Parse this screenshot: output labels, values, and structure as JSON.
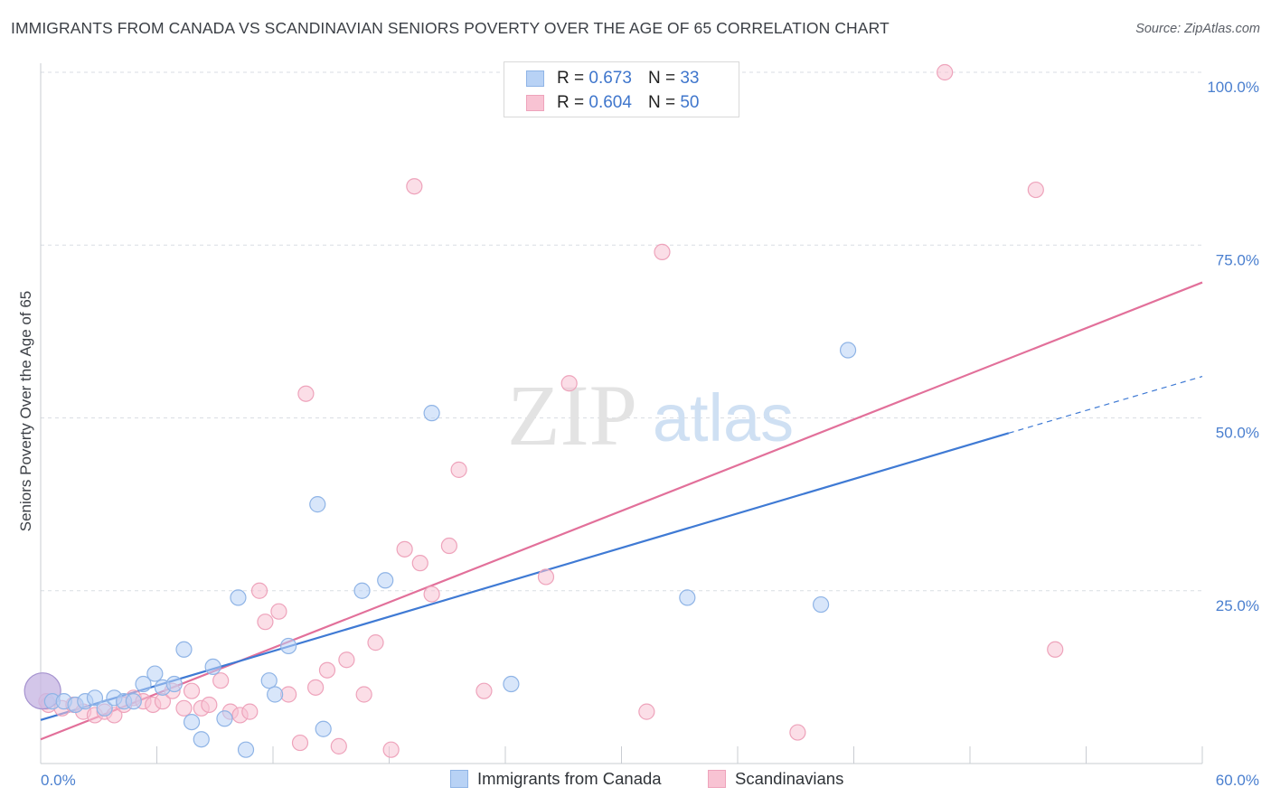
{
  "title": "IMMIGRANTS FROM CANADA VS SCANDINAVIAN SENIORS POVERTY OVER THE AGE OF 65 CORRELATION CHART",
  "source": "Source: ZipAtlas.com",
  "watermark": {
    "zip": "ZIP",
    "atlas": "atlas"
  },
  "legend": {
    "series1": {
      "r_label": "R =",
      "r_value": "0.673",
      "n_label": "N =",
      "n_value": "33"
    },
    "series2": {
      "r_label": "R =",
      "r_value": "0.604",
      "n_label": "N =",
      "n_value": "50"
    }
  },
  "bottom_legend": {
    "series1": "Immigrants from Canada",
    "series2": "Scandinavians"
  },
  "colors": {
    "blue_fill": "#b8d2f5",
    "blue_stroke": "#8fb4e6",
    "blue_line": "#3f7ad4",
    "pink_fill": "#f8c3d3",
    "pink_stroke": "#eea3bb",
    "pink_line": "#e2709a",
    "grid": "#d9dde3",
    "axis_label": "#4a7fcf"
  },
  "chart_data": {
    "type": "scatter",
    "title": "IMMIGRANTS FROM CANADA VS SCANDINAVIAN SENIORS POVERTY OVER THE AGE OF 65 CORRELATION CHART",
    "xlabel": "",
    "ylabel": "Seniors Poverty Over the Age of 65",
    "xlim": [
      0,
      60
    ],
    "ylim": [
      0,
      102
    ],
    "x_tick_labels": [
      "0.0%",
      "60.0%"
    ],
    "y_ticks": [
      25,
      50,
      75,
      100
    ],
    "y_tick_labels": [
      "25.0%",
      "50.0%",
      "75.0%",
      "100.0%"
    ],
    "grid": true,
    "legend_position": "top-center",
    "series": [
      {
        "name": "Immigrants from Canada",
        "color": "#b8d2f5",
        "r": 0.673,
        "n": 33,
        "trend": {
          "x": [
            0,
            50
          ],
          "y": [
            6.3,
            47.8
          ],
          "dashed_to": [
            60,
            56.0
          ]
        },
        "points": [
          {
            "x": 0.1,
            "y": 10.5,
            "big": true
          },
          {
            "x": 0.6,
            "y": 9.0
          },
          {
            "x": 1.2,
            "y": 9.0
          },
          {
            "x": 1.8,
            "y": 8.5
          },
          {
            "x": 2.3,
            "y": 9.0
          },
          {
            "x": 2.8,
            "y": 9.5
          },
          {
            "x": 3.3,
            "y": 8.0
          },
          {
            "x": 3.8,
            "y": 9.5
          },
          {
            "x": 4.3,
            "y": 9.0
          },
          {
            "x": 4.8,
            "y": 9.0
          },
          {
            "x": 5.3,
            "y": 11.5
          },
          {
            "x": 5.9,
            "y": 13.0
          },
          {
            "x": 6.3,
            "y": 11.0
          },
          {
            "x": 6.9,
            "y": 11.5
          },
          {
            "x": 7.4,
            "y": 16.5
          },
          {
            "x": 7.8,
            "y": 6.0
          },
          {
            "x": 8.3,
            "y": 3.5
          },
          {
            "x": 8.9,
            "y": 14.0
          },
          {
            "x": 9.5,
            "y": 6.5
          },
          {
            "x": 10.2,
            "y": 24.0
          },
          {
            "x": 10.6,
            "y": 2.0
          },
          {
            "x": 11.8,
            "y": 12.0
          },
          {
            "x": 12.1,
            "y": 10.0
          },
          {
            "x": 12.8,
            "y": 17.0
          },
          {
            "x": 14.3,
            "y": 37.5
          },
          {
            "x": 14.6,
            "y": 5.0
          },
          {
            "x": 16.6,
            "y": 25.0
          },
          {
            "x": 17.8,
            "y": 26.5
          },
          {
            "x": 20.2,
            "y": 50.7
          },
          {
            "x": 24.3,
            "y": 11.5
          },
          {
            "x": 33.4,
            "y": 24.0
          },
          {
            "x": 40.3,
            "y": 23.0
          },
          {
            "x": 41.7,
            "y": 59.8
          }
        ]
      },
      {
        "name": "Scandinavians",
        "color": "#f8c3d3",
        "r": 0.604,
        "n": 50,
        "trend": {
          "x": [
            0,
            60
          ],
          "y": [
            3.5,
            69.6
          ]
        },
        "points": [
          {
            "x": 0.4,
            "y": 8.5
          },
          {
            "x": 1.1,
            "y": 8.0
          },
          {
            "x": 1.7,
            "y": 8.5
          },
          {
            "x": 2.2,
            "y": 7.5
          },
          {
            "x": 2.8,
            "y": 7.0
          },
          {
            "x": 3.3,
            "y": 7.5
          },
          {
            "x": 3.8,
            "y": 7.0
          },
          {
            "x": 4.3,
            "y": 8.5
          },
          {
            "x": 4.8,
            "y": 9.5
          },
          {
            "x": 5.3,
            "y": 9.0
          },
          {
            "x": 5.8,
            "y": 8.5
          },
          {
            "x": 6.3,
            "y": 9.0
          },
          {
            "x": 6.8,
            "y": 10.5
          },
          {
            "x": 7.4,
            "y": 8.0
          },
          {
            "x": 7.8,
            "y": 10.5
          },
          {
            "x": 8.3,
            "y": 8.0
          },
          {
            "x": 8.7,
            "y": 8.5
          },
          {
            "x": 9.3,
            "y": 12.0
          },
          {
            "x": 9.8,
            "y": 7.5
          },
          {
            "x": 10.3,
            "y": 7.0
          },
          {
            "x": 10.8,
            "y": 7.5
          },
          {
            "x": 11.3,
            "y": 25.0
          },
          {
            "x": 11.6,
            "y": 20.5
          },
          {
            "x": 12.3,
            "y": 22.0
          },
          {
            "x": 12.8,
            "y": 10.0
          },
          {
            "x": 13.4,
            "y": 3.0
          },
          {
            "x": 13.7,
            "y": 53.5
          },
          {
            "x": 14.2,
            "y": 11.0
          },
          {
            "x": 14.8,
            "y": 13.5
          },
          {
            "x": 15.4,
            "y": 2.5
          },
          {
            "x": 15.8,
            "y": 15.0
          },
          {
            "x": 16.7,
            "y": 10.0
          },
          {
            "x": 17.3,
            "y": 17.5
          },
          {
            "x": 18.1,
            "y": 2.0
          },
          {
            "x": 18.8,
            "y": 31.0
          },
          {
            "x": 19.3,
            "y": 83.5
          },
          {
            "x": 19.6,
            "y": 29.0
          },
          {
            "x": 20.2,
            "y": 24.5
          },
          {
            "x": 21.1,
            "y": 31.5
          },
          {
            "x": 21.6,
            "y": 42.5
          },
          {
            "x": 22.9,
            "y": 10.5
          },
          {
            "x": 26.1,
            "y": 27.0
          },
          {
            "x": 27.3,
            "y": 55.0
          },
          {
            "x": 31.3,
            "y": 7.5
          },
          {
            "x": 32.1,
            "y": 74.0
          },
          {
            "x": 39.1,
            "y": 4.5
          },
          {
            "x": 46.7,
            "y": 100.0
          },
          {
            "x": 51.4,
            "y": 83.0
          },
          {
            "x": 52.4,
            "y": 16.5
          },
          {
            "x": 0.3,
            "y": 9.0
          }
        ]
      }
    ]
  }
}
